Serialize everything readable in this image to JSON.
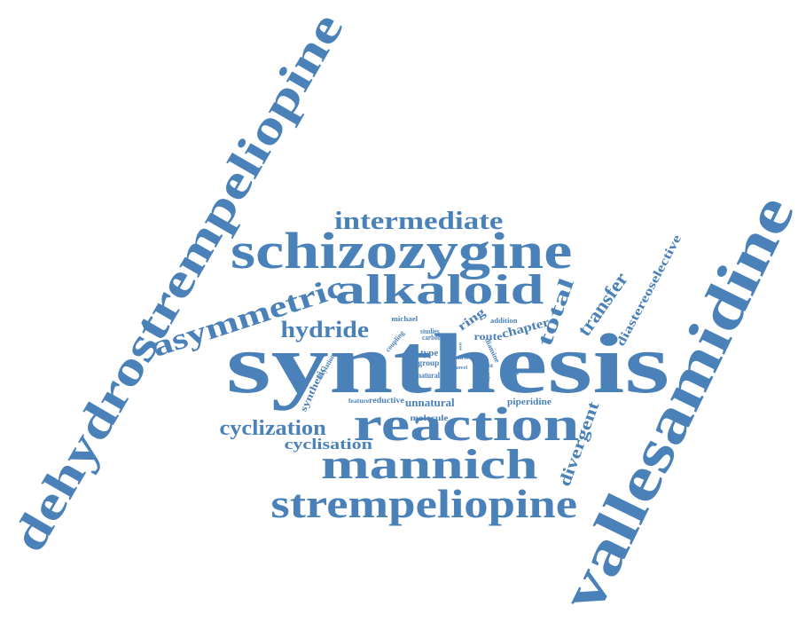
{
  "style": {
    "word_color": "#4a81b8",
    "background": "#ffffff"
  },
  "words": [
    {
      "text": "synthesis"
    },
    {
      "text": "vallesamidine"
    },
    {
      "text": "dehydrostrempeliopine"
    },
    {
      "text": "schizozygine"
    },
    {
      "text": "alkaloid"
    },
    {
      "text": "reaction"
    },
    {
      "text": "mannich"
    },
    {
      "text": "strempeliopine"
    },
    {
      "text": "asymmetric"
    },
    {
      "text": "intermediate"
    },
    {
      "text": "hydride"
    },
    {
      "text": "cyclization"
    },
    {
      "text": "cyclisation"
    },
    {
      "text": "total"
    },
    {
      "text": "transfer"
    },
    {
      "text": "divergent"
    },
    {
      "text": "diastereoselective"
    },
    {
      "text": "ring"
    },
    {
      "text": "chapter"
    },
    {
      "text": "route"
    },
    {
      "text": "unnatural"
    },
    {
      "text": "synthetic"
    },
    {
      "text": "reductive"
    },
    {
      "text": "piperidine"
    },
    {
      "text": "molecule"
    },
    {
      "text": "type"
    },
    {
      "text": "group"
    },
    {
      "text": "natural"
    },
    {
      "text": "michael"
    },
    {
      "text": "coupling"
    },
    {
      "text": "studies"
    },
    {
      "text": "carbon"
    },
    {
      "text": "addition"
    },
    {
      "text": "diamine"
    },
    {
      "text": "product"
    },
    {
      "text": "alkylation"
    },
    {
      "text": "feature"
    },
    {
      "text": "novel"
    },
    {
      "text": "first"
    },
    {
      "text": "build"
    },
    {
      "text": "use"
    },
    {
      "text": "step"
    },
    {
      "text": "via"
    }
  ]
}
